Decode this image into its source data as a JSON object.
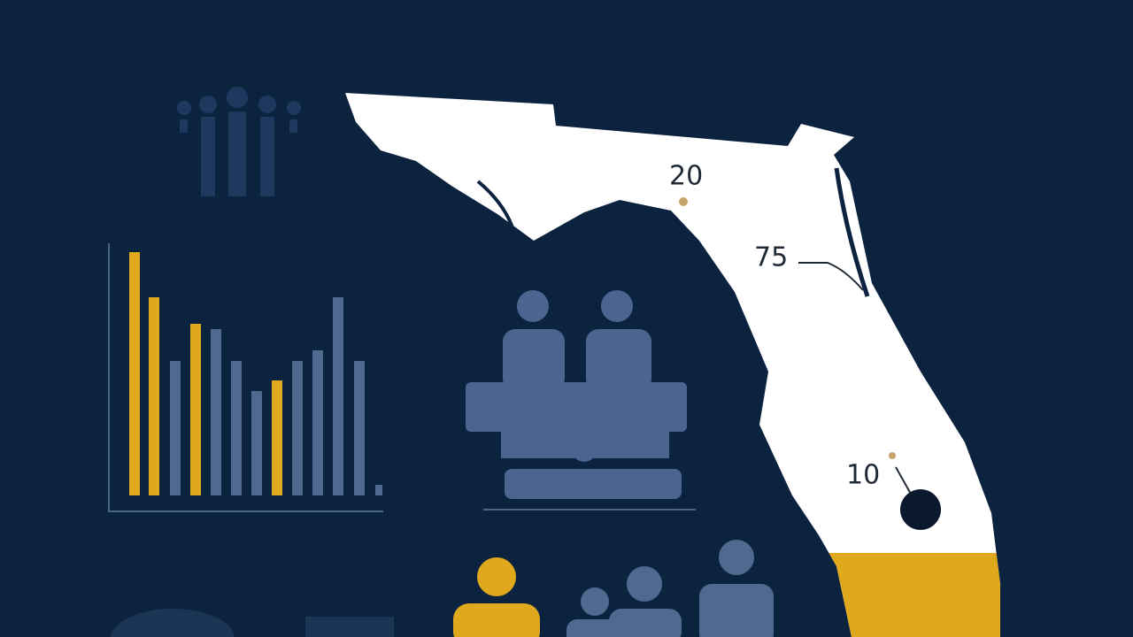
{
  "map": {
    "labels": [
      "20",
      "75",
      "10"
    ]
  }
}
